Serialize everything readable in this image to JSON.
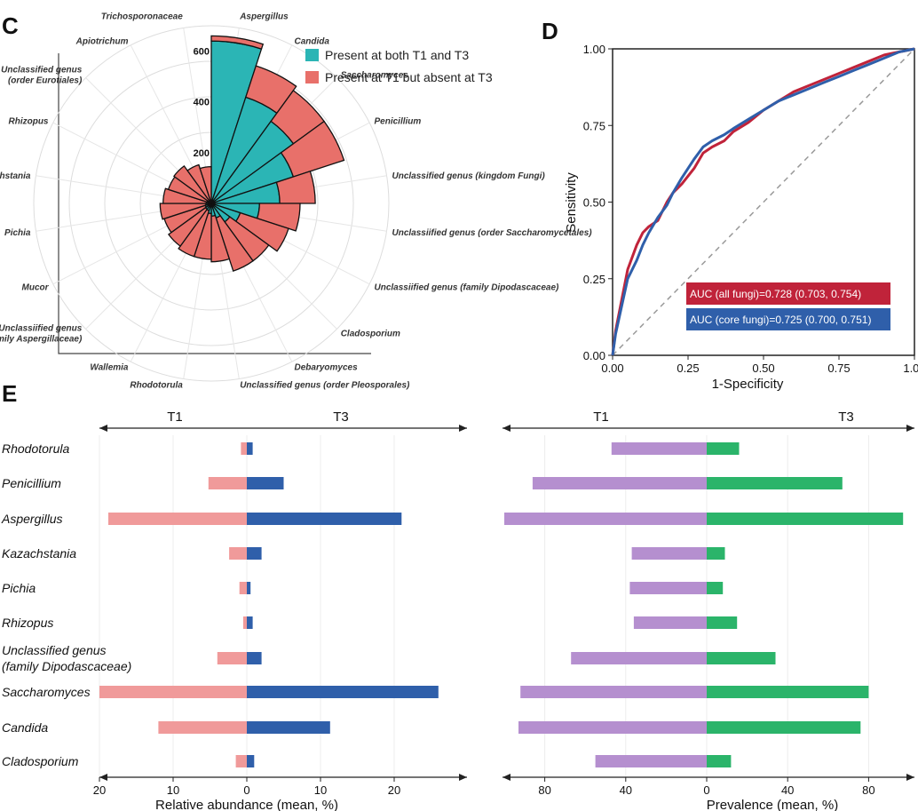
{
  "panels": {
    "c": "C",
    "d": "D",
    "e": "E"
  },
  "colors": {
    "both": "#2bb5b5",
    "t1_only": "#e8706a",
    "abundance_t1": "#f09a9a",
    "abundance_t3": "#2f5faa",
    "prevalence_t1": "#b58fcf",
    "prevalence_t3": "#2bb46a",
    "roc_all": "#c0233a",
    "roc_core": "#2f5faa"
  },
  "chart_data": [
    {
      "id": "C",
      "type": "polar-bar",
      "legend": [
        "Present at both T1 and T3",
        "Present at T1 but absent at T3"
      ],
      "radial_ticks": [
        200,
        400,
        600
      ],
      "radial_max": 700,
      "categories": [
        "Aspergillus",
        "Candida",
        "Saccharomyces",
        "Penicillium",
        "Unclassified genus (kingdom Fungi)",
        "Unclassified genus (order Saccharomycetales)",
        "Unclassified genus (family Dipodascaceae)",
        "Cladosporium",
        "Debaryomyces",
        "Unclassified genus (order Pleosporales)",
        "Rhodotorula",
        "Wallemia",
        "Unclassified genus (family Aspergillaceae)",
        "Mucor",
        "Pichia",
        "Kazachstania",
        "Rhizopus",
        "Unclassified genus (order Eurotiales)",
        "Apiotrichum",
        "Trichosporonaceae"
      ],
      "label_lines": [
        [
          "Aspergillus"
        ],
        [
          "Candida"
        ],
        [
          "Saccharomyces"
        ],
        [
          "Penicillium"
        ],
        [
          "Unclassified genus (kingdom Fungi)"
        ],
        [
          "Unclassiified genus (order Saccharomycetales)"
        ],
        [
          "Unclassiified genus (family Dipodascaceae)"
        ],
        [
          "Cladosporium"
        ],
        [
          "Debaryomyces"
        ],
        [
          "Unclassified genus (order Pleosporales)"
        ],
        [
          "Rhodotorula"
        ],
        [
          "Wallemia"
        ],
        [
          "Unclassiified genus",
          "(family Aspergillaceae)"
        ],
        [
          "Mucor"
        ],
        [
          "Pichia"
        ],
        [
          "Kazachstania"
        ],
        [
          "Rhizopus"
        ],
        [
          "Unclassified genus",
          "(order Eurotiales)"
        ],
        [
          "Apiotrichum"
        ],
        [
          "Trichosporonaceae"
        ]
      ],
      "both": [
        640,
        440,
        400,
        340,
        270,
        190,
        120,
        90,
        60,
        50,
        40,
        30,
        28,
        25,
        22,
        20,
        18,
        12,
        10,
        5
      ],
      "t1_only": [
        20,
        130,
        150,
        210,
        140,
        160,
        200,
        190,
        220,
        180,
        180,
        190,
        180,
        170,
        180,
        170,
        160,
        170,
        150,
        140
      ]
    },
    {
      "id": "D",
      "type": "line",
      "xlabel": "1-Specificity",
      "ylabel": "Sensitivity",
      "xlim": [
        0,
        1
      ],
      "ylim": [
        0,
        1
      ],
      "ticks": [
        "0.00",
        "0.25",
        "0.50",
        "0.75",
        "1.00"
      ],
      "series": [
        {
          "name": "AUC (all fungi)=0.728 (0.703, 0.754)",
          "x": [
            0,
            0.01,
            0.03,
            0.05,
            0.08,
            0.1,
            0.12,
            0.15,
            0.18,
            0.2,
            0.23,
            0.27,
            0.3,
            0.33,
            0.37,
            0.4,
            0.45,
            0.5,
            0.55,
            0.6,
            0.65,
            0.7,
            0.75,
            0.8,
            0.85,
            0.9,
            0.95,
            1
          ],
          "y": [
            0,
            0.08,
            0.18,
            0.28,
            0.36,
            0.4,
            0.42,
            0.44,
            0.5,
            0.53,
            0.56,
            0.61,
            0.66,
            0.68,
            0.7,
            0.73,
            0.76,
            0.8,
            0.83,
            0.86,
            0.88,
            0.9,
            0.92,
            0.94,
            0.96,
            0.98,
            0.99,
            1
          ]
        },
        {
          "name": "AUC (core fungi)=0.725 (0.700, 0.751)",
          "x": [
            0,
            0.01,
            0.03,
            0.05,
            0.08,
            0.1,
            0.12,
            0.15,
            0.18,
            0.2,
            0.23,
            0.27,
            0.3,
            0.33,
            0.37,
            0.4,
            0.45,
            0.5,
            0.55,
            0.6,
            0.65,
            0.7,
            0.75,
            0.8,
            0.85,
            0.9,
            0.95,
            1
          ],
          "y": [
            0,
            0.07,
            0.16,
            0.25,
            0.31,
            0.36,
            0.4,
            0.45,
            0.49,
            0.53,
            0.58,
            0.64,
            0.68,
            0.7,
            0.72,
            0.74,
            0.77,
            0.8,
            0.83,
            0.85,
            0.87,
            0.89,
            0.91,
            0.93,
            0.95,
            0.97,
            0.99,
            1
          ]
        }
      ]
    },
    {
      "id": "E-left",
      "type": "bar",
      "orientation": "diverging-horizontal",
      "arrow_labels": {
        "left": "T1",
        "right": "T3"
      },
      "xlabel": "Relative abundance (mean, %)",
      "xlim": [
        -20,
        28
      ],
      "ticks": [
        -20,
        -10,
        0,
        10,
        20
      ],
      "tick_labels": [
        "20",
        "10",
        "0",
        "10",
        "20"
      ],
      "categories": [
        "Rhodotorula",
        "Penicillium",
        "Aspergillus",
        "Kazachstania",
        "Pichia",
        "Rhizopus",
        "Unclassified genus (family Dipodascaceae)",
        "Saccharomyces",
        "Candida",
        "Cladosporium"
      ],
      "category_lines": [
        [
          "Rhodotorula"
        ],
        [
          "Penicillium"
        ],
        [
          "Aspergillus"
        ],
        [
          "Kazachstania"
        ],
        [
          "Pichia"
        ],
        [
          "Rhizopus"
        ],
        [
          "Unclassified genus",
          "(family Dipodascaceae)"
        ],
        [
          "Saccharomyces"
        ],
        [
          "Candida"
        ],
        [
          "Cladosporium"
        ]
      ],
      "series": [
        {
          "name": "T1",
          "values": [
            0.8,
            5.2,
            18.8,
            2.4,
            1.0,
            0.5,
            4.0,
            20.0,
            12.0,
            1.5
          ]
        },
        {
          "name": "T3",
          "values": [
            0.8,
            5.0,
            21.0,
            2.0,
            0.5,
            0.8,
            2.0,
            26.0,
            11.3,
            1.0
          ]
        }
      ]
    },
    {
      "id": "E-right",
      "type": "bar",
      "orientation": "diverging-horizontal",
      "arrow_labels": {
        "left": "T1",
        "right": "T3"
      },
      "xlabel": "Prevalence (mean, %)",
      "xlim": [
        -100,
        100
      ],
      "ticks": [
        -80,
        -40,
        0,
        40,
        80
      ],
      "tick_labels": [
        "80",
        "40",
        "0",
        "40",
        "80"
      ],
      "categories": [
        "Rhodotorula",
        "Penicillium",
        "Aspergillus",
        "Kazachstania",
        "Pichia",
        "Rhizopus",
        "Unclassified genus (family Dipodascaceae)",
        "Saccharomyces",
        "Candida",
        "Cladosporium"
      ],
      "series": [
        {
          "name": "T1",
          "values": [
            47,
            86,
            100,
            37,
            38,
            36,
            67,
            92,
            93,
            55
          ]
        },
        {
          "name": "T3",
          "values": [
            16,
            67,
            97,
            9,
            8,
            15,
            34,
            80,
            76,
            12
          ]
        }
      ]
    }
  ]
}
